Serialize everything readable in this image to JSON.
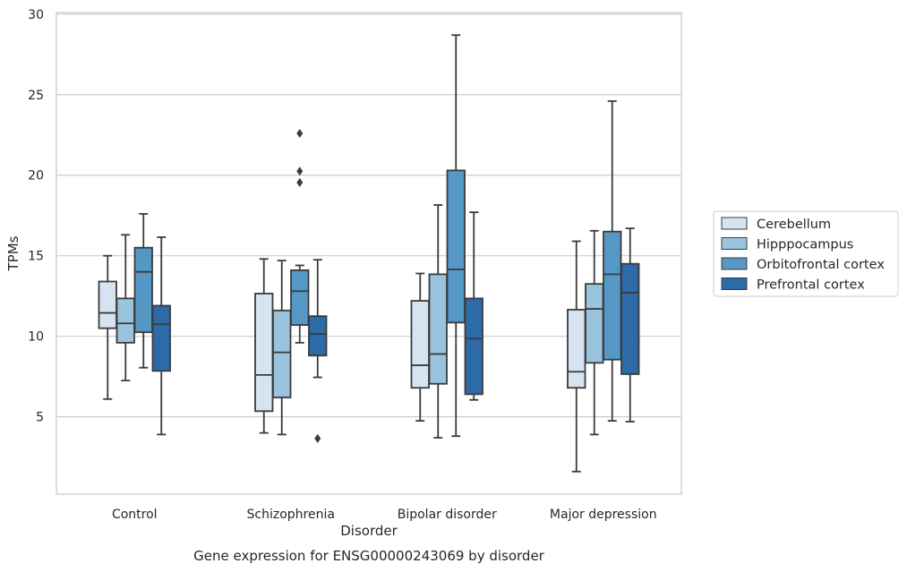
{
  "caption": "Gene expression for ENSG00000243069 by disorder",
  "chart_data": {
    "type": "box",
    "xlabel": "Disorder",
    "ylabel": "TPMs",
    "ylim": [
      0.2,
      30.1
    ],
    "yticks": [
      5,
      10,
      15,
      20,
      25,
      30
    ],
    "grid": "horizontal",
    "legend_position": "right",
    "categories": [
      "Control",
      "Schizophrenia",
      "Bipolar disorder",
      "Major depression"
    ],
    "series": [
      {
        "name": "Cerebellum",
        "color": "#d6e4f2",
        "boxes": [
          {
            "whislo": 6.1,
            "q1": 10.5,
            "med": 11.45,
            "q3": 13.4,
            "whishi": 15.0,
            "fliers": []
          },
          {
            "whislo": 4.0,
            "q1": 5.35,
            "med": 7.6,
            "q3": 12.65,
            "whishi": 14.8,
            "fliers": []
          },
          {
            "whislo": 4.75,
            "q1": 6.8,
            "med": 8.2,
            "q3": 12.2,
            "whishi": 13.9,
            "fliers": []
          },
          {
            "whislo": 1.6,
            "q1": 6.8,
            "med": 7.8,
            "q3": 11.65,
            "whishi": 15.9,
            "fliers": []
          }
        ]
      },
      {
        "name": "Hipppocampus",
        "color": "#9ac4dd",
        "boxes": [
          {
            "whislo": 7.25,
            "q1": 9.6,
            "med": 10.8,
            "q3": 12.35,
            "whishi": 16.3,
            "fliers": []
          },
          {
            "whislo": 3.9,
            "q1": 6.2,
            "med": 9.0,
            "q3": 11.6,
            "whishi": 14.7,
            "fliers": []
          },
          {
            "whislo": 3.7,
            "q1": 7.05,
            "med": 8.9,
            "q3": 13.85,
            "whishi": 18.15,
            "fliers": []
          },
          {
            "whislo": 3.9,
            "q1": 8.35,
            "med": 11.7,
            "q3": 13.25,
            "whishi": 16.55,
            "fliers": []
          }
        ]
      },
      {
        "name": "Orbitofrontal cortex",
        "color": "#5598c6",
        "boxes": [
          {
            "whislo": 8.05,
            "q1": 10.25,
            "med": 14.0,
            "q3": 15.5,
            "whishi": 17.6,
            "fliers": []
          },
          {
            "whislo": 9.6,
            "q1": 10.7,
            "med": 12.8,
            "q3": 14.1,
            "whishi": 14.4,
            "fliers": [
              19.55,
              20.25,
              22.6
            ]
          },
          {
            "whislo": 3.8,
            "q1": 10.85,
            "med": 14.15,
            "q3": 20.3,
            "whishi": 28.7,
            "fliers": []
          },
          {
            "whislo": 4.75,
            "q1": 8.55,
            "med": 13.85,
            "q3": 16.5,
            "whishi": 24.6,
            "fliers": []
          }
        ]
      },
      {
        "name": "Prefrontal cortex",
        "color": "#2c6aa8",
        "boxes": [
          {
            "whislo": 3.9,
            "q1": 7.85,
            "med": 10.75,
            "q3": 11.9,
            "whishi": 16.15,
            "fliers": []
          },
          {
            "whislo": 7.45,
            "q1": 8.8,
            "med": 10.15,
            "q3": 11.25,
            "whishi": 14.75,
            "fliers": [
              3.65
            ]
          },
          {
            "whislo": 6.05,
            "q1": 6.4,
            "med": 9.85,
            "q3": 12.35,
            "whishi": 17.7,
            "fliers": []
          },
          {
            "whislo": 4.7,
            "q1": 7.65,
            "med": 12.7,
            "q3": 14.5,
            "whishi": 16.7,
            "fliers": []
          }
        ]
      }
    ]
  }
}
